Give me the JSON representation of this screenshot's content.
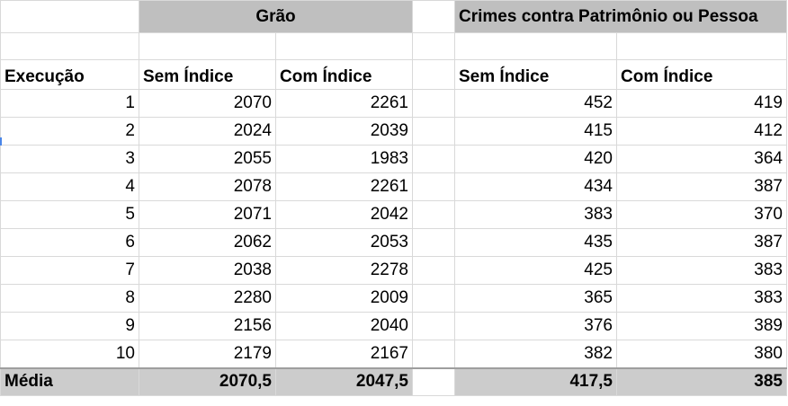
{
  "headers": {
    "group_grao": "Grão",
    "group_crimes": "Crimes contra Patrimônio ou Pessoa",
    "execucao": "Execução",
    "sem_indice_1": "Sem Índice",
    "com_indice_1": "Com Índice",
    "sem_indice_2": "Sem Índice",
    "com_indice_2": "Com Índice"
  },
  "rows": [
    {
      "exec": "1",
      "grao_sem": "2070",
      "grao_com": "2261",
      "crimes_sem": "452",
      "crimes_com": "419"
    },
    {
      "exec": "2",
      "grao_sem": "2024",
      "grao_com": "2039",
      "crimes_sem": "415",
      "crimes_com": "412"
    },
    {
      "exec": "3",
      "grao_sem": "2055",
      "grao_com": "1983",
      "crimes_sem": "420",
      "crimes_com": "364"
    },
    {
      "exec": "4",
      "grao_sem": "2078",
      "grao_com": "2261",
      "crimes_sem": "434",
      "crimes_com": "387"
    },
    {
      "exec": "5",
      "grao_sem": "2071",
      "grao_com": "2042",
      "crimes_sem": "383",
      "crimes_com": "370"
    },
    {
      "exec": "6",
      "grao_sem": "2062",
      "grao_com": "2053",
      "crimes_sem": "435",
      "crimes_com": "387"
    },
    {
      "exec": "7",
      "grao_sem": "2038",
      "grao_com": "2278",
      "crimes_sem": "425",
      "crimes_com": "383"
    },
    {
      "exec": "8",
      "grao_sem": "2280",
      "grao_com": "2009",
      "crimes_sem": "365",
      "crimes_com": "383"
    },
    {
      "exec": "9",
      "grao_sem": "2156",
      "grao_com": "2040",
      "crimes_sem": "376",
      "crimes_com": "389"
    },
    {
      "exec": "10",
      "grao_sem": "2179",
      "grao_com": "2167",
      "crimes_sem": "382",
      "crimes_com": "380"
    }
  ],
  "average": {
    "label": "Média",
    "grao_sem": "2070,5",
    "grao_com": "2047,5",
    "crimes_sem": "417,5",
    "crimes_com": "385"
  },
  "colors": {
    "header_fill": "#bfbfbf",
    "average_fill": "#cccccc",
    "gridline": "#d9d9d9",
    "selection_marker": "#4a86e8"
  }
}
